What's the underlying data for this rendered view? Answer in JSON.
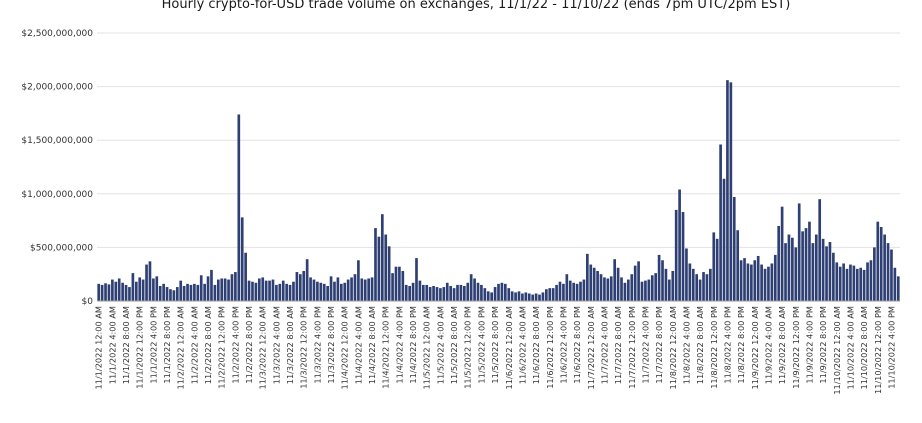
{
  "chart_data": {
    "type": "bar",
    "title": "Hourly crypto-for-USD trade volume on exchanges, 11/1/22 - 11/10/22 (ends 7pm UTC/2pm EST)",
    "xlabel": "",
    "ylabel": "",
    "ylim": [
      0,
      2500000000
    ],
    "y_ticks": [
      "$2,500,000,000",
      "$2,000,000,000",
      "$1,500,000,000",
      "$1,000,000,000",
      "$500,000,000",
      "$0"
    ],
    "y_tick_values": [
      2500000000,
      2000000000,
      1500000000,
      1000000000,
      500000000,
      0
    ],
    "grid": "horizontal",
    "bar_color": "#2e3f73",
    "start": "11/1/2022 12:00 AM",
    "interval_hours": 1,
    "x_tick_every_hours": 4,
    "values": [
      160,
      150,
      165,
      155,
      200,
      180,
      210,
      170,
      150,
      130,
      260,
      180,
      220,
      200,
      340,
      370,
      210,
      230,
      140,
      160,
      130,
      110,
      100,
      130,
      190,
      140,
      160,
      150,
      160,
      150,
      240,
      160,
      230,
      290,
      150,
      200,
      210,
      210,
      200,
      250,
      270,
      1740,
      780,
      450,
      190,
      180,
      170,
      210,
      220,
      190,
      190,
      200,
      150,
      160,
      190,
      160,
      150,
      180,
      270,
      250,
      280,
      390,
      220,
      200,
      180,
      170,
      160,
      140,
      230,
      180,
      220,
      160,
      170,
      200,
      220,
      250,
      380,
      210,
      200,
      210,
      220,
      680,
      600,
      810,
      620,
      510,
      260,
      320,
      320,
      280,
      150,
      140,
      170,
      400,
      190,
      150,
      150,
      130,
      140,
      130,
      120,
      130,
      170,
      140,
      120,
      150,
      150,
      140,
      170,
      250,
      210,
      170,
      150,
      120,
      90,
      80,
      130,
      160,
      170,
      160,
      120,
      90,
      80,
      90,
      70,
      80,
      70,
      60,
      70,
      60,
      80,
      110,
      120,
      120,
      150,
      180,
      160,
      250,
      190,
      170,
      160,
      180,
      200,
      440,
      340,
      310,
      280,
      250,
      220,
      210,
      230,
      390,
      310,
      220,
      170,
      200,
      250,
      330,
      370,
      180,
      190,
      200,
      240,
      260,
      430,
      380,
      300,
      200,
      280,
      850,
      1040,
      830,
      490,
      350,
      300,
      250,
      200,
      270,
      250,
      300,
      640,
      580,
      1460,
      1140,
      2060,
      2040,
      970,
      660,
      380,
      400,
      350,
      340,
      380,
      420,
      340,
      300,
      320,
      350,
      430,
      700,
      880,
      540,
      620,
      590,
      500,
      910,
      650,
      680,
      740,
      540,
      620,
      950,
      580,
      510,
      550,
      450,
      360,
      320,
      350,
      300,
      340,
      330,
      300,
      310,
      290,
      360,
      380,
      500,
      740,
      690,
      620,
      540,
      480,
      310,
      230
    ],
    "values_unit": "millions USD"
  }
}
